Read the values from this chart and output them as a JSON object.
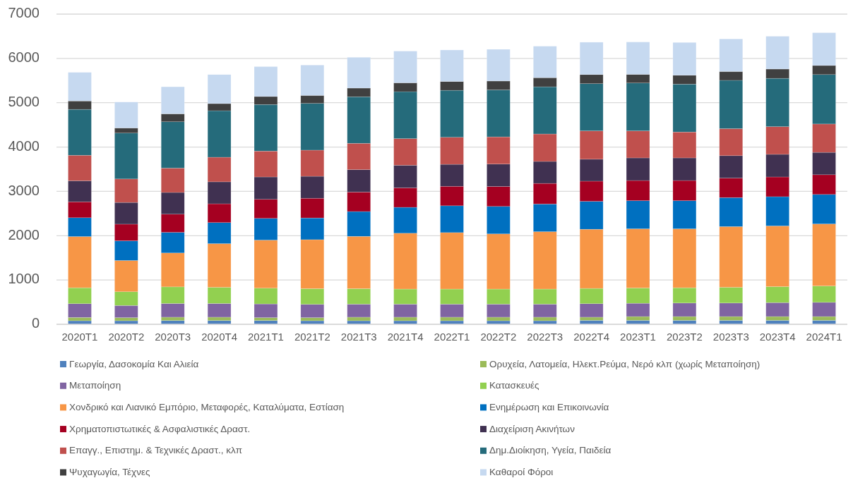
{
  "chart_data": {
    "type": "bar",
    "stacked": true,
    "categories": [
      "2020T1",
      "2020T2",
      "2020T3",
      "2020T4",
      "2021T1",
      "2021T2",
      "2021T3",
      "2021T4",
      "2022T1",
      "2022T2",
      "2022T3",
      "2022T4",
      "2023T1",
      "2023T2",
      "2023T3",
      "2023T4",
      "2024T1"
    ],
    "series": [
      {
        "name": "Γεωργία, Δασοκομία Και Αλιεία",
        "color": "#4f81bd",
        "values": [
          80,
          80,
          85,
          85,
          85,
          80,
          80,
          80,
          80,
          80,
          80,
          90,
          90,
          90,
          90,
          90,
          90
        ]
      },
      {
        "name": "Ορυχεία, Λατομεία, Ηλεκτ.Ρεύμα, Νερό κλπ (χωρίς Μεταποίηση)",
        "color": "#9bbb59",
        "values": [
          75,
          70,
          75,
          75,
          65,
          70,
          80,
          80,
          80,
          80,
          80,
          70,
          85,
          85,
          85,
          85,
          85
        ]
      },
      {
        "name": "Μεταποίηση",
        "color": "#8064a2",
        "values": [
          310,
          275,
          310,
          310,
          310,
          300,
          295,
          295,
          295,
          295,
          295,
          305,
          300,
          305,
          305,
          315,
          320
        ]
      },
      {
        "name": "Κατασκευές",
        "color": "#92d050",
        "values": [
          360,
          310,
          375,
          365,
          355,
          355,
          350,
          340,
          340,
          340,
          340,
          345,
          345,
          345,
          355,
          360,
          370
        ]
      },
      {
        "name": "Χονδρικό και Λιανικό Εμπόριο, Μεταφορές, Καταλύματα, Εστίαση",
        "color": "#f79646",
        "values": [
          1155,
          705,
          765,
          985,
          1085,
          1105,
          1180,
          1260,
          1275,
          1245,
          1295,
          1335,
          1335,
          1330,
          1370,
          1370,
          1400
        ]
      },
      {
        "name": "Ενημέρωση και Επικοινωνία",
        "color": "#0070c0",
        "values": [
          425,
          445,
          465,
          475,
          490,
          490,
          560,
          585,
          605,
          620,
          625,
          630,
          635,
          635,
          655,
          660,
          665
        ]
      },
      {
        "name": "Χρηματοπιστωτικές & Ασφαλιστικές Δραστ.",
        "color": "#a50021",
        "values": [
          360,
          375,
          410,
          425,
          430,
          445,
          440,
          440,
          440,
          450,
          465,
          455,
          455,
          455,
          440,
          445,
          445
        ]
      },
      {
        "name": "Διαχείριση Ακινήτων",
        "color": "#403151",
        "values": [
          475,
          490,
          490,
          495,
          505,
          495,
          505,
          510,
          495,
          505,
          495,
          495,
          510,
          510,
          505,
          510,
          505
        ]
      },
      {
        "name": "Επαγγ., Επιστημ. & Τεχνικές Δραστ., κλπ",
        "color": "#c0504d",
        "values": [
          575,
          530,
          550,
          555,
          585,
          590,
          595,
          600,
          610,
          615,
          620,
          640,
          610,
          585,
          610,
          625,
          640
        ]
      },
      {
        "name": "Δημ.Διοίκηση,  Υγεία, Παιδεία",
        "color": "#256b7b",
        "values": [
          1035,
          1035,
          1045,
          1050,
          1050,
          1055,
          1050,
          1060,
          1060,
          1060,
          1065,
          1065,
          1080,
          1080,
          1090,
          1090,
          1115
        ]
      },
      {
        "name": "Ψυχαγωγία, Τέχνες",
        "color": "#404040",
        "values": [
          190,
          115,
          180,
          160,
          180,
          180,
          195,
          200,
          200,
          200,
          205,
          205,
          195,
          200,
          200,
          210,
          205
        ]
      },
      {
        "name": "Καθαροί Φόροι",
        "color": "#c6d9f0",
        "values": [
          645,
          585,
          610,
          655,
          675,
          685,
          695,
          715,
          710,
          715,
          710,
          730,
          730,
          740,
          735,
          740,
          740
        ]
      }
    ],
    "ylim": [
      0,
      7000
    ],
    "yticks": [
      0,
      1000,
      2000,
      3000,
      4000,
      5000,
      6000,
      7000
    ],
    "grid": "y",
    "legend": "bottom"
  }
}
